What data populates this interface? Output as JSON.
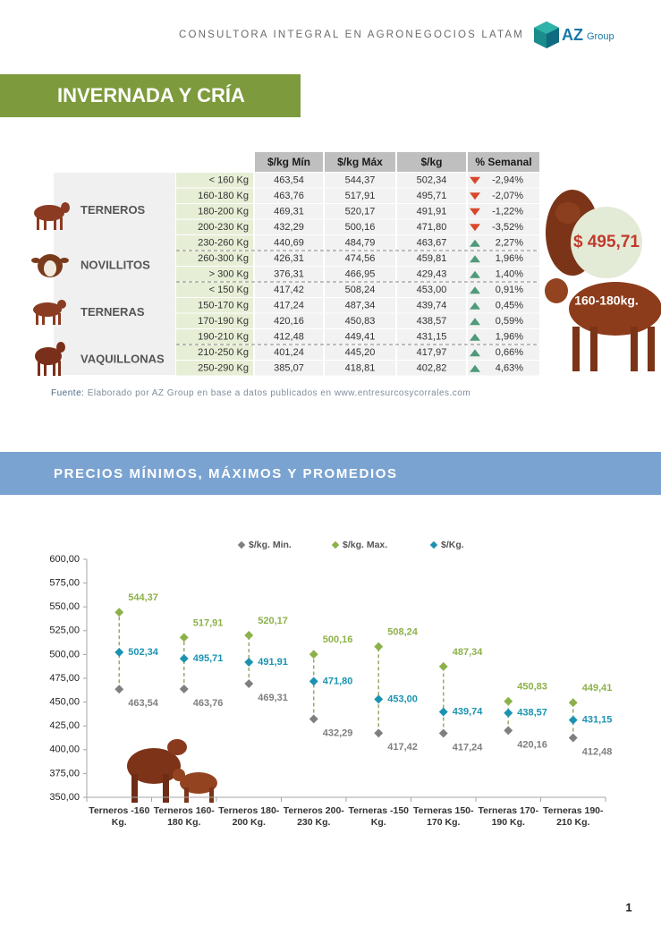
{
  "header": {
    "tagline": "CONSULTORA INTEGRAL EN AGRONEGOCIOS LATAM",
    "logo_main": "AZ",
    "logo_sub": "Group"
  },
  "section1": {
    "title": "INVERNADA Y CRÍA"
  },
  "table": {
    "columns": [
      "$/kg Mín",
      "$/kg Máx",
      "$/kg",
      "% Semanal"
    ],
    "groups": [
      {
        "label": "TERNEROS",
        "rows": [
          [
            "< 160 Kg",
            "463,54",
            "544,37",
            "502,34",
            "-2,94%"
          ],
          [
            "160-180 Kg",
            "463,76",
            "517,91",
            "495,71",
            "-2,07%"
          ],
          [
            "180-200 Kg",
            "469,31",
            "520,17",
            "491,91",
            "-1,22%"
          ],
          [
            "200-230 Kg",
            "432,29",
            "500,16",
            "471,80",
            "-3,52%"
          ],
          [
            "230-260 Kg",
            "440,69",
            "484,79",
            "463,67",
            "2,27%"
          ]
        ]
      },
      {
        "label": "NOVILLITOS",
        "rows": [
          [
            "260-300 Kg",
            "426,31",
            "474,56",
            "459,81",
            "1,96%"
          ],
          [
            "> 300 Kg",
            "376,31",
            "466,95",
            "429,43",
            "1,40%"
          ]
        ]
      },
      {
        "label": "TERNERAS",
        "rows": [
          [
            "< 150 Kg",
            "417,42",
            "508,24",
            "453,00",
            "0,91%"
          ],
          [
            "150-170 Kg",
            "417,24",
            "487,34",
            "439,74",
            "0,45%"
          ],
          [
            "170-190 Kg",
            "420,16",
            "450,83",
            "438,57",
            "0,59%"
          ],
          [
            "190-210 Kg",
            "412,48",
            "449,41",
            "431,15",
            "1,96%"
          ]
        ]
      },
      {
        "label": "VAQUILLONAS",
        "rows": [
          [
            "210-250 Kg",
            "401,24",
            "445,20",
            "417,97",
            "0,66%"
          ],
          [
            "250-290 Kg",
            "385,07",
            "418,81",
            "402,82",
            "4,63%"
          ]
        ]
      }
    ]
  },
  "badge": {
    "price": "$ 495,71",
    "weight": "160-180kg."
  },
  "source": {
    "label": "Fuente:",
    "text": "Elaborado por AZ Group en base a datos publicados en www.entresurcosycorrales.com"
  },
  "section2": {
    "title": "PRECIOS MÍNIMOS, MÁXIMOS Y PROMEDIOS"
  },
  "chart_data": {
    "type": "range-dots",
    "categories": [
      [
        "Terneros -160",
        "Kg."
      ],
      [
        "Terneros 160-",
        "180 Kg."
      ],
      [
        "Terneros 180-",
        "200 Kg."
      ],
      [
        "Terneros 200-",
        "230 Kg."
      ],
      [
        "Terneras -150",
        "Kg."
      ],
      [
        "Terneras 150-",
        "170 Kg."
      ],
      [
        "Terneras 170-",
        "190 Kg."
      ],
      [
        "Terneras 190-",
        "210 Kg."
      ]
    ],
    "series": [
      {
        "name": "$/kg. Min.",
        "color": "#7f7f7f",
        "values": [
          463.54,
          463.76,
          469.31,
          432.29,
          417.42,
          417.24,
          420.16,
          412.48
        ],
        "value_labels": [
          "463,54",
          "463,76",
          "469,31",
          "432,29",
          "417,42",
          "417,24",
          "420,16",
          "412,48"
        ]
      },
      {
        "name": "$/kg. Max.",
        "color": "#8db14a",
        "values": [
          544.37,
          517.91,
          520.17,
          500.16,
          508.24,
          487.34,
          450.83,
          449.41
        ],
        "value_labels": [
          "544,37",
          "517,91",
          "520,17",
          "500,16",
          "508,24",
          "487,34",
          "450,83",
          "449,41"
        ]
      },
      {
        "name": "$/Kg.",
        "color": "#1b93b0",
        "values": [
          502.34,
          495.71,
          491.91,
          471.8,
          453.0,
          439.74,
          438.57,
          431.15
        ],
        "value_labels": [
          "502,34",
          "495,71",
          "491,91",
          "471,80",
          "453,00",
          "439,74",
          "438,57",
          "431,15"
        ]
      }
    ],
    "ylim": [
      350,
      600
    ],
    "yticks": [
      {
        "value": 350,
        "label": "350,00"
      },
      {
        "value": 375,
        "label": "375,00"
      },
      {
        "value": 400,
        "label": "400,00"
      },
      {
        "value": 425,
        "label": "425,00"
      },
      {
        "value": 450,
        "label": "450,00"
      },
      {
        "value": 475,
        "label": "475,00"
      },
      {
        "value": 500,
        "label": "500,00"
      },
      {
        "value": 525,
        "label": "525,00"
      },
      {
        "value": 550,
        "label": "550,00"
      },
      {
        "value": 575,
        "label": "575,00"
      },
      {
        "value": 600,
        "label": "600,00"
      }
    ],
    "legend": "top"
  },
  "footer": {
    "page": "1"
  }
}
